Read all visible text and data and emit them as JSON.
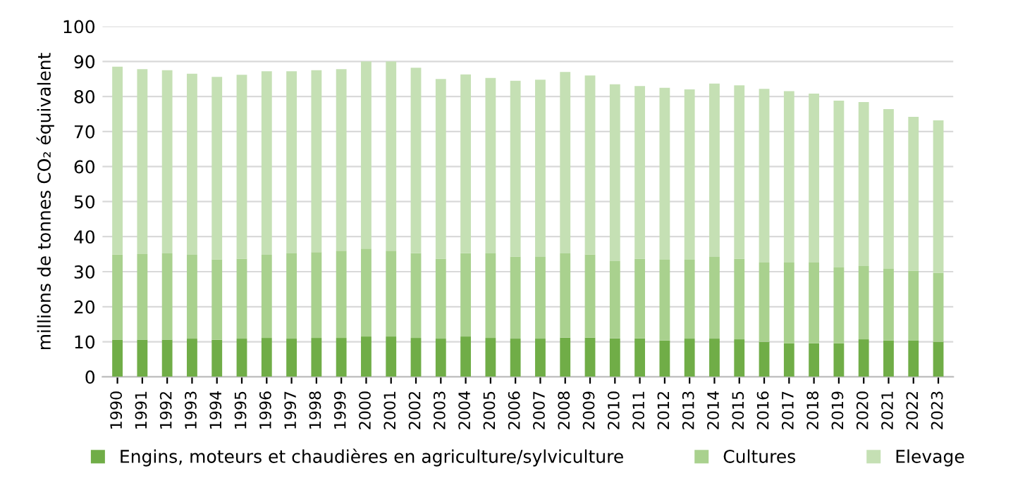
{
  "chart_data": {
    "type": "bar",
    "stacked": true,
    "ylabel": "millions de tonnes CO₂ équivalent",
    "categories": [
      "1990",
      "1991",
      "1992",
      "1993",
      "1994",
      "1995",
      "1996",
      "1997",
      "1998",
      "1999",
      "2000",
      "2001",
      "2002",
      "2003",
      "2004",
      "2005",
      "2006",
      "2007",
      "2008",
      "2009",
      "2010",
      "2011",
      "2012",
      "2013",
      "2014",
      "2015",
      "2016",
      "2017",
      "2018",
      "2019",
      "2020",
      "2021",
      "2022",
      "2023"
    ],
    "series": [
      {
        "name": "Engins, moteurs et chaudières en agriculture/sylviculture",
        "color": "#70ad47",
        "values": [
          10.6,
          10.6,
          10.6,
          10.9,
          10.6,
          10.9,
          11.1,
          10.9,
          11.1,
          11.1,
          11.5,
          11.5,
          11.1,
          10.9,
          11.5,
          11.1,
          10.9,
          10.9,
          11.2,
          11.2,
          11.0,
          11.0,
          10.4,
          10.9,
          10.9,
          10.7,
          10.0,
          9.6,
          9.6,
          9.6,
          10.7,
          10.4,
          10.4,
          10.0
        ]
      },
      {
        "name": "Cultures",
        "color": "#a9d18e",
        "values": [
          24.3,
          24.4,
          24.6,
          23.9,
          22.9,
          22.8,
          23.7,
          24.3,
          24.5,
          24.9,
          25.1,
          24.5,
          24.2,
          22.8,
          23.8,
          24.1,
          23.4,
          23.3,
          24.0,
          23.7,
          22.0,
          22.7,
          23.0,
          22.5,
          23.3,
          23.0,
          22.6,
          23.0,
          23.0,
          21.6,
          20.9,
          20.4,
          19.9,
          19.7
        ]
      },
      {
        "name": "Elevage",
        "color": "#c5e0b4",
        "values": [
          53.6,
          52.8,
          52.3,
          51.7,
          52.1,
          52.5,
          52.4,
          52.0,
          51.9,
          51.8,
          53.4,
          54.0,
          52.9,
          51.3,
          51.0,
          50.1,
          50.2,
          50.6,
          51.8,
          51.1,
          50.5,
          49.3,
          49.1,
          48.6,
          49.5,
          49.5,
          49.6,
          48.9,
          48.2,
          47.6,
          46.8,
          45.6,
          43.9,
          43.5
        ]
      }
    ],
    "ylim": [
      0,
      100
    ],
    "yticks": [
      0,
      10,
      20,
      30,
      40,
      50,
      60,
      70,
      80,
      90,
      100
    ],
    "grid": "y",
    "legend": "bottom"
  }
}
